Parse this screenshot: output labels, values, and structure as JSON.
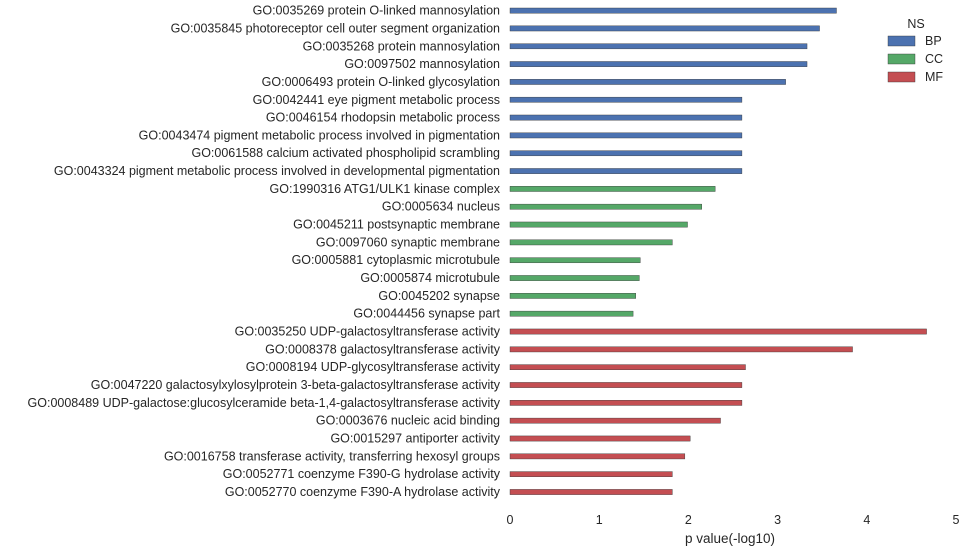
{
  "chart_data": {
    "type": "bar",
    "orientation": "horizontal",
    "xlabel": "p value(-log10)",
    "xlim": [
      0,
      5
    ],
    "xticks": [
      "0",
      "1",
      "2",
      "3",
      "4",
      "5"
    ],
    "grid": false,
    "legend_title": "NS",
    "legend_placement": "top-right",
    "legend": [
      {
        "name": "BP",
        "color": "#4c72b0"
      },
      {
        "name": "CC",
        "color": "#55a868"
      },
      {
        "name": "MF",
        "color": "#c44e52"
      }
    ],
    "categories": [
      "GO:0035269 protein O-linked mannosylation",
      "GO:0035845 photoreceptor cell outer segment organization",
      "GO:0035268 protein mannosylation",
      "GO:0097502 mannosylation",
      "GO:0006493 protein O-linked glycosylation",
      "GO:0042441 eye pigment metabolic process",
      "GO:0046154 rhodopsin metabolic process",
      "GO:0043474 pigment metabolic process involved in pigmentation",
      "GO:0061588 calcium activated phospholipid scrambling",
      "GO:0043324 pigment metabolic process involved in developmental pigmentation",
      "GO:1990316 ATG1/ULK1 kinase complex",
      "GO:0005634 nucleus",
      "GO:0045211 postsynaptic membrane",
      "GO:0097060 synaptic membrane",
      "GO:0005881 cytoplasmic microtubule",
      "GO:0005874 microtubule",
      "GO:0045202 synapse",
      "GO:0044456 synapse part",
      "GO:0035250 UDP-galactosyltransferase activity",
      "GO:0008378 galactosyltransferase activity",
      "GO:0008194 UDP-glycosyltransferase activity",
      "GO:0047220 galactosylxylosylprotein 3-beta-galactosyltransferase activity",
      "GO:0008489 UDP-galactose:glucosylceramide beta-1,4-galactosyltransferase activity",
      "GO:0003676 nucleic acid binding",
      "GO:0015297 antiporter activity",
      "GO:0016758 transferase activity, transferring hexosyl groups",
      "GO:0052771 coenzyme F390-G hydrolase activity",
      "GO:0052770 coenzyme F390-A hydrolase activity"
    ],
    "values": [
      3.66,
      3.47,
      3.33,
      3.33,
      3.09,
      2.6,
      2.6,
      2.6,
      2.6,
      2.6,
      2.3,
      2.15,
      1.99,
      1.82,
      1.46,
      1.45,
      1.41,
      1.38,
      4.67,
      3.84,
      2.64,
      2.6,
      2.6,
      2.36,
      2.02,
      1.96,
      1.82,
      1.82
    ],
    "groups": [
      "BP",
      "BP",
      "BP",
      "BP",
      "BP",
      "BP",
      "BP",
      "BP",
      "BP",
      "BP",
      "CC",
      "CC",
      "CC",
      "CC",
      "CC",
      "CC",
      "CC",
      "CC",
      "MF",
      "MF",
      "MF",
      "MF",
      "MF",
      "MF",
      "MF",
      "MF",
      "MF",
      "MF"
    ]
  }
}
